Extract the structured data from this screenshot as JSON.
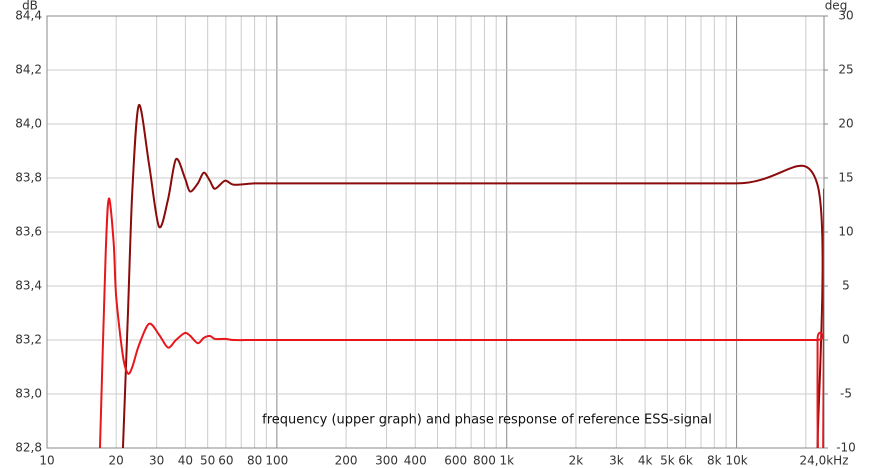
{
  "chart_data": {
    "type": "line",
    "y_label": "dB",
    "y2_label": "deg",
    "annotation": "frequency (upper graph) and phase response of reference ESS-signal",
    "log_x": true,
    "grid": true,
    "x": [
      17,
      18,
      18.6,
      19.5,
      20,
      21.4,
      22.5,
      23.5,
      25.1,
      27.8,
      30.7,
      33.6,
      36.4,
      39.8,
      41.9,
      45.3,
      48.1,
      51.1,
      53.8,
      59.5,
      65,
      80,
      100,
      1000,
      10000,
      22400,
      22500,
      22600,
      23800,
      24000
    ],
    "series": [
      {
        "name": "frequency",
        "color": "#8b0a0a",
        "axis": "y",
        "values": [
          null,
          null,
          null,
          null,
          null,
          82.8,
          83.3,
          83.75,
          84.07,
          83.85,
          83.62,
          83.72,
          83.87,
          83.8,
          83.75,
          83.78,
          83.82,
          83.79,
          83.76,
          83.79,
          83.775,
          83.78,
          83.78,
          83.78,
          83.78,
          83.78,
          82.8,
          null,
          null,
          null
        ]
      },
      {
        "name": "phase",
        "color": "#e8161a",
        "axis": "y2",
        "values": [
          -10,
          8,
          13.1,
          9,
          4,
          -1.5,
          -3.1,
          -2.5,
          -0.5,
          1.5,
          0.5,
          -0.7,
          0,
          0.65,
          0.4,
          -0.3,
          0.2,
          0.37,
          0.1,
          0.1,
          0,
          0,
          0,
          0,
          0,
          0,
          0,
          -10,
          -10,
          14
        ]
      }
    ],
    "xlim": [
      10,
      24000
    ],
    "xticks": [
      10,
      20,
      30,
      40,
      50,
      60,
      80,
      100,
      200,
      300,
      400,
      600,
      800,
      {
        "value": 1000,
        "label": "1k"
      },
      {
        "value": 2000,
        "label": "2k"
      },
      {
        "value": 3000,
        "label": "3k"
      },
      {
        "value": 4000,
        "label": "4k"
      },
      {
        "value": 5000,
        "label": "5k"
      },
      {
        "value": 6000,
        "label": "6k"
      },
      {
        "value": 8000,
        "label": "8k"
      },
      {
        "value": 10000,
        "label": "10k"
      },
      {
        "value": 24000,
        "label": "24,0kHz"
      }
    ],
    "x_minor_grid": [
      70,
      90,
      500,
      700,
      900,
      7000,
      9000,
      20000
    ],
    "ylim": [
      82.8,
      84.4
    ],
    "yticks": [
      {
        "value": 82.8,
        "label": "82,8"
      },
      {
        "value": 83.0,
        "label": "83,0"
      },
      {
        "value": 83.2,
        "label": "83,2"
      },
      {
        "value": 83.4,
        "label": "83,4"
      },
      {
        "value": 83.6,
        "label": "83,6"
      },
      {
        "value": 83.8,
        "label": "83,8"
      },
      {
        "value": 84.0,
        "label": "84,0"
      },
      {
        "value": 84.2,
        "label": "84,2"
      },
      {
        "value": 84.4,
        "label": "84,4"
      }
    ],
    "y2lim": [
      -10,
      30
    ],
    "y2ticks": [
      -10,
      -5,
      0,
      5,
      10,
      15,
      20,
      25,
      30
    ]
  }
}
